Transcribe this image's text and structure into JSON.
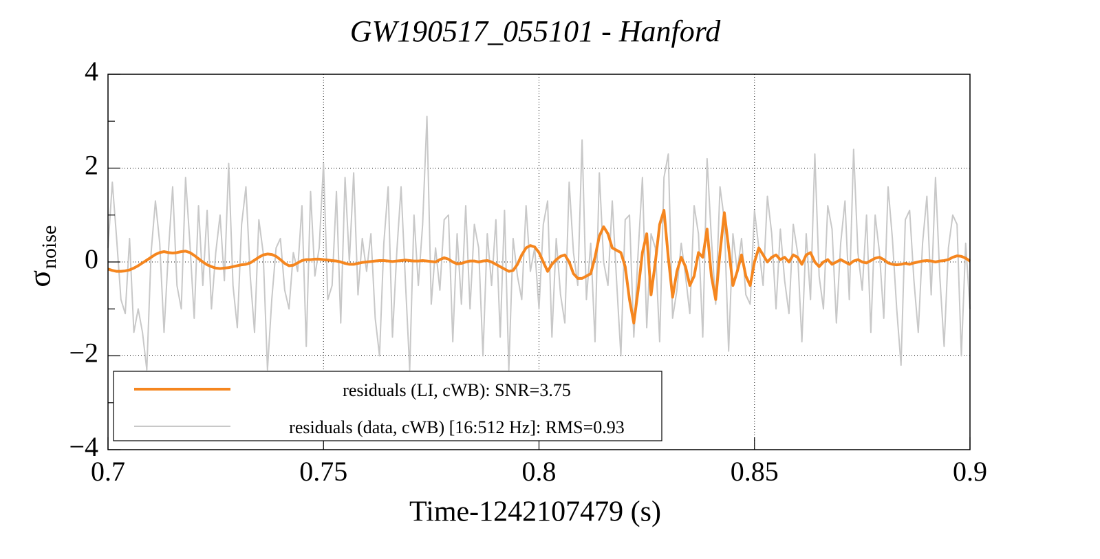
{
  "chart_data": {
    "type": "line",
    "title": "GW190517_055101 - Hanford",
    "x_label": "Time-1242107479 (s)",
    "y_label": "σ",
    "y_label_subscript": "noise",
    "xlim": [
      0.7,
      0.9
    ],
    "xticks": [
      0.7,
      0.75,
      0.8,
      0.85,
      0.9
    ],
    "ylim": [
      -4,
      4
    ],
    "yticks": [
      {
        "value": -4,
        "label": "−4"
      },
      {
        "value": -2,
        "label": "−2"
      },
      0,
      2,
      4
    ],
    "yminorticks": [
      -3,
      -1,
      1,
      3
    ],
    "grid": true,
    "legend": "lower left",
    "x": [
      0.7,
      0.701,
      0.702,
      0.703,
      0.704,
      0.705,
      0.706,
      0.707,
      0.708,
      0.709,
      0.71,
      0.711,
      0.712,
      0.713,
      0.714,
      0.715,
      0.716,
      0.717,
      0.718,
      0.719,
      0.72,
      0.721,
      0.722,
      0.723,
      0.724,
      0.725,
      0.726,
      0.727,
      0.728,
      0.729,
      0.73,
      0.731,
      0.732,
      0.733,
      0.734,
      0.735,
      0.736,
      0.737,
      0.738,
      0.739,
      0.74,
      0.741,
      0.742,
      0.743,
      0.744,
      0.745,
      0.746,
      0.747,
      0.748,
      0.749,
      0.75,
      0.751,
      0.752,
      0.753,
      0.754,
      0.755,
      0.756,
      0.757,
      0.758,
      0.759,
      0.76,
      0.761,
      0.762,
      0.763,
      0.764,
      0.765,
      0.766,
      0.767,
      0.768,
      0.769,
      0.77,
      0.771,
      0.772,
      0.773,
      0.774,
      0.775,
      0.776,
      0.777,
      0.778,
      0.779,
      0.78,
      0.781,
      0.782,
      0.783,
      0.784,
      0.785,
      0.786,
      0.787,
      0.788,
      0.789,
      0.79,
      0.791,
      0.792,
      0.793,
      0.794,
      0.795,
      0.796,
      0.797,
      0.798,
      0.799,
      0.8,
      0.801,
      0.802,
      0.803,
      0.804,
      0.805,
      0.806,
      0.807,
      0.808,
      0.809,
      0.81,
      0.811,
      0.812,
      0.813,
      0.814,
      0.815,
      0.816,
      0.817,
      0.818,
      0.819,
      0.82,
      0.821,
      0.822,
      0.823,
      0.824,
      0.825,
      0.826,
      0.827,
      0.828,
      0.829,
      0.83,
      0.831,
      0.832,
      0.833,
      0.834,
      0.835,
      0.836,
      0.837,
      0.838,
      0.839,
      0.84,
      0.841,
      0.842,
      0.843,
      0.844,
      0.845,
      0.846,
      0.847,
      0.848,
      0.849,
      0.85,
      0.851,
      0.852,
      0.853,
      0.854,
      0.855,
      0.856,
      0.857,
      0.858,
      0.859,
      0.86,
      0.861,
      0.862,
      0.863,
      0.864,
      0.865,
      0.866,
      0.867,
      0.868,
      0.869,
      0.87,
      0.871,
      0.872,
      0.873,
      0.874,
      0.875,
      0.876,
      0.877,
      0.878,
      0.879,
      0.88,
      0.881,
      0.882,
      0.883,
      0.884,
      0.885,
      0.886,
      0.887,
      0.888,
      0.889,
      0.89,
      0.891,
      0.892,
      0.893,
      0.894,
      0.895,
      0.896,
      0.897,
      0.898,
      0.899,
      0.9
    ],
    "series": [
      {
        "name": "residuals (LI, cWB): SNR=3.75",
        "color": "#f5861f",
        "width": 4,
        "values": [
          -0.15,
          -0.18,
          -0.2,
          -0.2,
          -0.19,
          -0.17,
          -0.13,
          -0.08,
          -0.02,
          0.04,
          0.1,
          0.16,
          0.2,
          0.22,
          0.2,
          0.19,
          0.2,
          0.22,
          0.23,
          0.2,
          0.14,
          0.07,
          0.0,
          -0.06,
          -0.1,
          -0.13,
          -0.14,
          -0.13,
          -0.12,
          -0.1,
          -0.08,
          -0.06,
          -0.05,
          -0.02,
          0.04,
          0.1,
          0.15,
          0.17,
          0.16,
          0.12,
          0.05,
          -0.03,
          -0.08,
          -0.07,
          -0.02,
          0.03,
          0.05,
          0.05,
          0.06,
          0.06,
          0.05,
          0.04,
          0.03,
          0.02,
          0.0,
          -0.03,
          -0.05,
          -0.05,
          -0.03,
          -0.01,
          0.0,
          0.01,
          0.02,
          0.03,
          0.03,
          0.02,
          0.01,
          0.02,
          0.03,
          0.04,
          0.03,
          0.02,
          0.02,
          0.03,
          0.02,
          0.01,
          0.0,
          0.05,
          0.09,
          0.06,
          0.0,
          -0.04,
          -0.03,
          0.0,
          0.02,
          0.02,
          0.0,
          0.02,
          0.03,
          0.0,
          -0.05,
          -0.1,
          -0.15,
          -0.2,
          -0.18,
          -0.05,
          0.15,
          0.3,
          0.35,
          0.32,
          0.2,
          0.0,
          -0.2,
          -0.05,
          0.05,
          0.12,
          0.15,
          0.0,
          -0.25,
          -0.35,
          -0.35,
          -0.3,
          -0.25,
          0.1,
          0.55,
          0.75,
          0.6,
          0.3,
          0.25,
          0.2,
          -0.1,
          -0.8,
          -1.3,
          -0.6,
          0.2,
          0.6,
          -0.7,
          0.0,
          0.8,
          1.1,
          0.1,
          -0.75,
          -0.2,
          0.1,
          -0.1,
          -0.5,
          -0.3,
          0.2,
          0.1,
          0.7,
          -0.3,
          -0.8,
          0.2,
          1.05,
          0.3,
          -0.5,
          -0.2,
          0.15,
          -0.3,
          -0.5,
          0.0,
          0.3,
          0.15,
          0.0,
          0.1,
          0.15,
          0.05,
          0.1,
          0.0,
          0.15,
          0.1,
          -0.05,
          0.15,
          0.2,
          0.0,
          -0.1,
          0.0,
          0.05,
          -0.05,
          0.0,
          0.05,
          0.0,
          -0.05,
          0.02,
          0.05,
          0.0,
          -0.02,
          0.03,
          0.08,
          0.1,
          0.05,
          -0.02,
          -0.05,
          -0.06,
          -0.05,
          -0.03,
          -0.05,
          -0.02,
          0.0,
          0.02,
          0.03,
          0.02,
          0.0,
          0.02,
          0.03,
          0.05,
          0.1,
          0.13,
          0.12,
          0.08,
          0.02
        ]
      },
      {
        "name": "residuals (data, cWB) [16:512 Hz]: RMS=0.93",
        "color": "#c8c8c8",
        "width": 2,
        "values": [
          0.3,
          1.7,
          0.5,
          -0.8,
          -1.1,
          0.5,
          -1.5,
          -1.0,
          -1.5,
          -2.3,
          0.2,
          1.3,
          0.4,
          -1.5,
          0.2,
          1.6,
          -0.5,
          -1.0,
          1.8,
          0.4,
          -1.2,
          1.2,
          -0.5,
          1.1,
          -1.0,
          0.2,
          1.0,
          -0.4,
          2.1,
          -0.5,
          -1.4,
          0.8,
          1.6,
          -0.3,
          -1.5,
          0.9,
          0.2,
          -2.3,
          -0.8,
          0.3,
          0.5,
          -0.6,
          -1.0,
          0.2,
          -0.2,
          1.2,
          -1.8,
          1.5,
          -0.3,
          0.3,
          2.1,
          -0.8,
          -0.5,
          1.5,
          -1.3,
          1.8,
          0.0,
          1.9,
          -0.7,
          0.5,
          -0.2,
          0.6,
          -1.2,
          -2.0,
          0.4,
          1.6,
          -1.6,
          0.2,
          1.6,
          -0.4,
          -2.3,
          1.0,
          -0.5,
          0.8,
          3.1,
          -0.9,
          0.3,
          -0.6,
          0.9,
          1.0,
          -1.7,
          0.6,
          -0.9,
          1.2,
          -1.0,
          0.8,
          0.3,
          -2.0,
          0.6,
          -0.5,
          0.9,
          -1.6,
          1.1,
          -2.3,
          0.5,
          -0.3,
          -0.8,
          1.2,
          -0.2,
          0.3,
          -1.0,
          0.8,
          1.3,
          -1.6,
          0.5,
          -0.7,
          -1.3,
          1.7,
          0.2,
          -0.5,
          2.6,
          -0.8,
          0.4,
          -1.7,
          1.9,
          0.0,
          -0.5,
          1.3,
          -0.4,
          -2.0,
          0.9,
          1.0,
          -1.6,
          0.2,
          1.8,
          -1.4,
          0.6,
          0.3,
          -1.7,
          1.8,
          2.3,
          -1.2,
          -0.6,
          0.4,
          -0.3,
          -1.1,
          1.2,
          0.6,
          -1.6,
          2.2,
          0.5,
          -0.9,
          1.6,
          0.9,
          -1.9,
          0.6,
          -0.2,
          0.5,
          -0.7,
          -0.9,
          1.1,
          0.3,
          -0.5,
          1.4,
          0.6,
          -1.0,
          0.7,
          -0.4,
          -1.1,
          0.8,
          0.2,
          -1.7,
          0.6,
          -0.8,
          2.3,
          -0.3,
          -1.0,
          1.2,
          0.7,
          -1.3,
          0.4,
          1.3,
          -0.8,
          2.4,
          0.2,
          -0.6,
          1.0,
          -1.5,
          1.0,
          0.2,
          -1.2,
          1.6,
          0.5,
          -1.0,
          -2.2,
          0.9,
          1.1,
          -0.4,
          -1.5,
          0.4,
          1.4,
          -0.7,
          1.8,
          -0.3,
          -1.8,
          0.3,
          1.0,
          0.8,
          -2.0,
          0.4,
          -1.0
        ]
      }
    ]
  }
}
